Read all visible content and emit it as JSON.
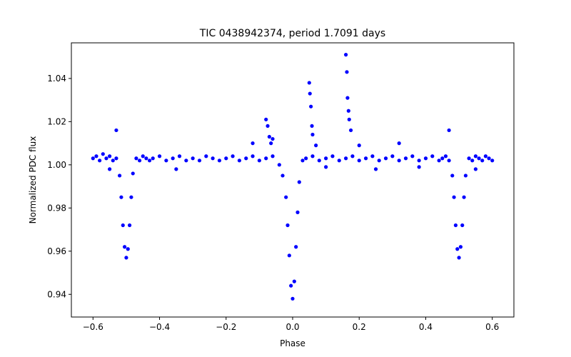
{
  "chart_data": {
    "type": "scatter",
    "title": "TIC 0438942374, period 1.7091 days",
    "xlabel": "Phase",
    "ylabel": "Normalized PDC flux",
    "xlim": [
      -0.665,
      0.665
    ],
    "ylim": [
      0.9295,
      1.0565
    ],
    "xticks": [
      -0.6,
      -0.4,
      -0.2,
      0.0,
      0.2,
      0.4,
      0.6
    ],
    "xtick_labels": [
      "−0.6",
      "−0.4",
      "−0.2",
      "0.0",
      "0.2",
      "0.4",
      "0.6"
    ],
    "yticks": [
      0.94,
      0.96,
      0.98,
      1.0,
      1.02,
      1.04
    ],
    "ytick_labels": [
      "0.94",
      "0.96",
      "0.98",
      "1.00",
      "1.02",
      "1.04"
    ],
    "grid": false,
    "marker_color": "#0000ff",
    "series": [
      {
        "name": "",
        "x": [
          -0.6,
          -0.59,
          -0.58,
          -0.57,
          -0.56,
          -0.55,
          -0.54,
          -0.53,
          -0.52,
          -0.515,
          -0.51,
          -0.505,
          -0.5,
          -0.495,
          -0.49,
          -0.485,
          -0.48,
          -0.47,
          -0.46,
          -0.45,
          -0.44,
          -0.43,
          -0.42,
          -0.4,
          -0.38,
          -0.36,
          -0.34,
          -0.32,
          -0.3,
          -0.28,
          -0.26,
          -0.24,
          -0.22,
          -0.2,
          -0.18,
          -0.16,
          -0.14,
          -0.12,
          -0.1,
          -0.08,
          -0.06,
          -0.04,
          -0.03,
          -0.02,
          -0.015,
          -0.01,
          -0.005,
          0.0,
          0.005,
          0.01,
          0.015,
          0.02,
          0.03,
          0.04,
          0.06,
          0.08,
          0.1,
          0.12,
          0.14,
          0.16,
          0.18,
          0.2,
          0.22,
          0.24,
          0.26,
          0.28,
          0.3,
          0.32,
          0.34,
          0.36,
          0.38,
          0.4,
          0.42,
          0.44,
          0.45,
          0.46,
          0.47,
          0.48,
          0.485,
          0.49,
          0.495,
          0.5,
          0.505,
          0.51,
          0.515,
          0.52,
          0.53,
          0.54,
          0.55,
          0.56,
          0.57,
          0.58,
          0.59,
          0.6,
          -0.53,
          -0.12,
          -0.08,
          -0.075,
          -0.07,
          -0.065,
          -0.06,
          0.05,
          0.052,
          0.055,
          0.058,
          0.06,
          0.07,
          0.16,
          0.163,
          0.165,
          0.168,
          0.17,
          0.175,
          0.47,
          0.2,
          0.32,
          -0.55,
          -0.35,
          0.1,
          0.25,
          0.38,
          0.55
        ],
        "y": [
          1.003,
          1.004,
          1.002,
          1.005,
          1.003,
          1.004,
          1.002,
          1.003,
          0.995,
          0.985,
          0.972,
          0.962,
          0.957,
          0.961,
          0.972,
          0.985,
          0.996,
          1.003,
          1.002,
          1.004,
          1.003,
          1.002,
          1.003,
          1.004,
          1.002,
          1.003,
          1.004,
          1.002,
          1.003,
          1.002,
          1.004,
          1.003,
          1.002,
          1.003,
          1.004,
          1.002,
          1.003,
          1.004,
          1.002,
          1.003,
          1.004,
          1.0,
          0.995,
          0.985,
          0.972,
          0.958,
          0.944,
          0.938,
          0.946,
          0.962,
          0.978,
          0.992,
          1.002,
          1.003,
          1.004,
          1.002,
          1.003,
          1.004,
          1.002,
          1.003,
          1.004,
          1.002,
          1.003,
          1.004,
          1.002,
          1.003,
          1.004,
          1.002,
          1.003,
          1.004,
          1.002,
          1.003,
          1.004,
          1.002,
          1.003,
          1.004,
          1.002,
          0.995,
          0.985,
          0.972,
          0.961,
          0.957,
          0.962,
          0.972,
          0.985,
          0.995,
          1.003,
          1.002,
          1.004,
          1.003,
          1.002,
          1.004,
          1.003,
          1.002,
          1.016,
          1.01,
          1.021,
          1.018,
          1.013,
          1.01,
          1.012,
          1.038,
          1.033,
          1.027,
          1.018,
          1.014,
          1.009,
          1.051,
          1.043,
          1.031,
          1.025,
          1.021,
          1.016,
          1.016,
          1.009,
          1.01,
          0.998,
          0.998,
          0.999,
          0.998,
          0.999,
          0.998
        ]
      }
    ]
  }
}
